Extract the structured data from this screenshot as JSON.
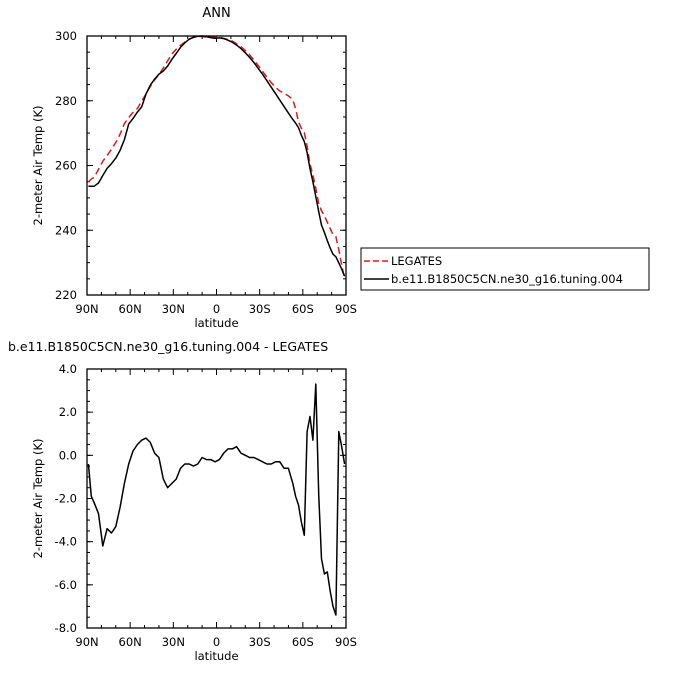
{
  "chart_data": [
    {
      "type": "line",
      "title": "ANN",
      "xlabel": "latitude",
      "ylabel": "2-meter Air Temp (K)",
      "xlim": [
        90,
        -90
      ],
      "ylim": [
        220,
        300
      ],
      "x_ticks": [
        "90N",
        "60N",
        "30N",
        "0",
        "30S",
        "60S",
        "90S"
      ],
      "y_ticks": [
        "220",
        "240",
        "260",
        "280",
        "300"
      ],
      "legend_position": "right",
      "series": [
        {
          "name": "LEGATES",
          "color": "#e3151c",
          "style": "dashed",
          "x": [
            89,
            87,
            85,
            82,
            79,
            76,
            73,
            70,
            67,
            64,
            61,
            58,
            55,
            52,
            49,
            46,
            43,
            40,
            37,
            34,
            31,
            28,
            25,
            22,
            19,
            16,
            13,
            10,
            7,
            4,
            1,
            -2,
            -5,
            -8,
            -11,
            -14,
            -17,
            -20,
            -23,
            -26,
            -29,
            -32,
            -35,
            -38,
            -41,
            -44,
            -47,
            -50,
            -53,
            -55,
            -57,
            -59,
            -61,
            -63,
            -65,
            -67,
            -69,
            -71,
            -73,
            -75,
            -77,
            -79,
            -81,
            -83,
            -85,
            -87,
            -89
          ],
          "values": [
            254.9,
            255.8,
            256.4,
            258.8,
            261.3,
            263.1,
            265,
            267.1,
            269.7,
            272.9,
            274.8,
            276.4,
            277.6,
            279.9,
            282.1,
            284.4,
            286.4,
            288.1,
            290.1,
            292.3,
            294.4,
            295.9,
            297.1,
            298.1,
            299,
            299.6,
            299.9,
            299.8,
            299.7,
            299.6,
            299.6,
            299.6,
            299.3,
            298.9,
            298.4,
            297.6,
            296.7,
            295.5,
            294.2,
            292.6,
            290.9,
            289.1,
            287.3,
            285.6,
            284.2,
            283,
            282.3,
            281.5,
            280.4,
            277.5,
            273.5,
            271.5,
            270.2,
            266,
            260.5,
            257,
            253,
            248.3,
            246,
            244.5,
            242.5,
            240.5,
            238.7,
            238,
            234,
            229.3,
            225
          ]
        },
        {
          "name": "b.e11.B1850C5CN.ne30_g16.tuning.004",
          "color": "#000000",
          "style": "solid",
          "x": [
            89,
            87,
            85,
            82,
            79,
            76,
            73,
            70,
            67,
            64,
            61,
            58,
            55,
            52,
            49,
            46,
            43,
            40,
            37,
            34,
            31,
            28,
            25,
            22,
            19,
            16,
            13,
            10,
            7,
            4,
            1,
            -2,
            -5,
            -8,
            -11,
            -14,
            -17,
            -20,
            -23,
            -26,
            -29,
            -32,
            -35,
            -38,
            -41,
            -44,
            -47,
            -50,
            -53,
            -55,
            -57,
            -59,
            -61,
            -63,
            -65,
            -67,
            -69,
            -71,
            -73,
            -75,
            -77,
            -79,
            -81,
            -83,
            -85,
            -87,
            -89
          ],
          "values": [
            253.6,
            253.6,
            253.6,
            254.6,
            256.9,
            259.1,
            260.6,
            262.3,
            264.7,
            268,
            272.8,
            274.5,
            276.5,
            278.1,
            282.1,
            284.8,
            286.7,
            288.2,
            289.2,
            290.7,
            292.8,
            294.6,
            296.5,
            297.9,
            299,
            299.6,
            299.9,
            300,
            299.8,
            299.5,
            299.3,
            299.4,
            299.2,
            298.7,
            298.1,
            297.2,
            296.1,
            294.8,
            293.4,
            291.8,
            290,
            288.2,
            286.2,
            284.2,
            282.2,
            280.2,
            278.2,
            276.2,
            274.2,
            273.1,
            271.7,
            269.3,
            267.4,
            264,
            259,
            255,
            250.4,
            245.8,
            241.6,
            239.3,
            236.8,
            234.5,
            232.6,
            231.8,
            229.9,
            228,
            225.8
          ]
        }
      ]
    },
    {
      "type": "line",
      "title": "b.e11.B1850C5CN.ne30_g16.tuning.004 - LEGATES",
      "xlabel": "latitude",
      "ylabel": "2-meter Air Temp (K)",
      "xlim": [
        90,
        -90
      ],
      "ylim": [
        -8,
        4
      ],
      "x_ticks": [
        "90N",
        "60N",
        "30N",
        "0",
        "30S",
        "60S",
        "90S"
      ],
      "y_ticks": [
        "-8.0",
        "-6.0",
        "-4.0",
        "-2.0",
        "0.0",
        "2.0",
        "4.0"
      ],
      "series": [
        {
          "color": "#000000",
          "style": "solid",
          "x": [
            89,
            87,
            85,
            82,
            79,
            76,
            73,
            70,
            67,
            64,
            61,
            58,
            55,
            52,
            49,
            46,
            43,
            40,
            37,
            34,
            31,
            28,
            25,
            22,
            19,
            16,
            13,
            10,
            7,
            4,
            1,
            -2,
            -5,
            -8,
            -11,
            -14,
            -17,
            -20,
            -23,
            -26,
            -29,
            -32,
            -35,
            -38,
            -41,
            -44,
            -47,
            -50,
            -53,
            -55,
            -57,
            -59,
            -61,
            -63,
            -65,
            -67,
            -69,
            -71,
            -73,
            -75,
            -77,
            -79,
            -81,
            -83,
            -85,
            -87,
            -89
          ],
          "values": [
            -0.4,
            -1.9,
            -2.2,
            -2.7,
            -4.2,
            -3.4,
            -3.6,
            -3.3,
            -2.4,
            -1.3,
            -0.4,
            0.2,
            0.5,
            0.7,
            0.8,
            0.6,
            0.1,
            -0.1,
            -1.1,
            -1.5,
            -1.3,
            -1.1,
            -0.6,
            -0.4,
            -0.4,
            -0.5,
            -0.4,
            -0.1,
            -0.2,
            -0.2,
            -0.3,
            -0.2,
            0.1,
            0.3,
            0.3,
            0.4,
            0.1,
            0.0,
            -0.1,
            -0.1,
            -0.2,
            -0.3,
            -0.4,
            -0.4,
            -0.3,
            -0.3,
            -0.6,
            -0.6,
            -1.3,
            -1.9,
            -2.3,
            -3.1,
            -3.7,
            1.1,
            1.8,
            0.7,
            3.3,
            -1.8,
            -4.8,
            -5.5,
            -5.4,
            -6.3,
            -7.0,
            -7.4,
            1.1,
            0.4,
            -0.4
          ]
        }
      ]
    }
  ]
}
